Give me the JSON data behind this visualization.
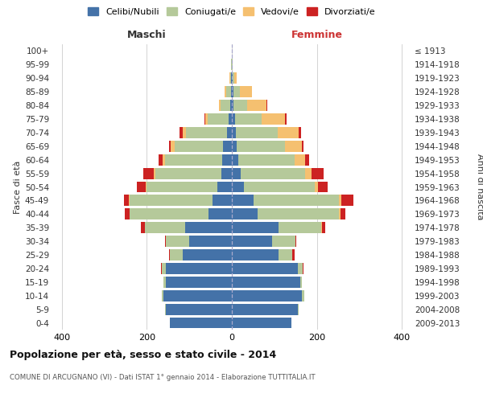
{
  "age_groups": [
    "0-4",
    "5-9",
    "10-14",
    "15-19",
    "20-24",
    "25-29",
    "30-34",
    "35-39",
    "40-44",
    "45-49",
    "50-54",
    "55-59",
    "60-64",
    "65-69",
    "70-74",
    "75-79",
    "80-84",
    "85-89",
    "90-94",
    "95-99",
    "100+"
  ],
  "birth_years": [
    "2009-2013",
    "2004-2008",
    "1999-2003",
    "1994-1998",
    "1989-1993",
    "1984-1988",
    "1979-1983",
    "1974-1978",
    "1969-1973",
    "1964-1968",
    "1959-1963",
    "1954-1958",
    "1949-1953",
    "1944-1948",
    "1939-1943",
    "1934-1938",
    "1929-1933",
    "1924-1928",
    "1919-1923",
    "1914-1918",
    "≤ 1913"
  ],
  "male_celibi": [
    145,
    155,
    160,
    155,
    155,
    115,
    100,
    110,
    55,
    45,
    35,
    25,
    22,
    20,
    12,
    8,
    4,
    2,
    1,
    0,
    0
  ],
  "male_coniugati": [
    0,
    2,
    5,
    5,
    10,
    30,
    55,
    95,
    185,
    195,
    165,
    155,
    135,
    115,
    95,
    48,
    22,
    12,
    3,
    1,
    0
  ],
  "male_vedovi": [
    0,
    0,
    0,
    0,
    0,
    0,
    0,
    0,
    1,
    2,
    2,
    4,
    5,
    8,
    8,
    6,
    5,
    3,
    1,
    0,
    0
  ],
  "male_divorziati": [
    0,
    0,
    0,
    0,
    1,
    2,
    2,
    8,
    10,
    12,
    22,
    25,
    10,
    5,
    8,
    2,
    0,
    0,
    0,
    0,
    0
  ],
  "female_nubili": [
    140,
    155,
    165,
    160,
    155,
    110,
    95,
    110,
    60,
    52,
    28,
    20,
    15,
    12,
    10,
    8,
    4,
    3,
    1,
    0,
    0
  ],
  "female_coniugate": [
    0,
    2,
    5,
    5,
    12,
    32,
    55,
    100,
    192,
    200,
    167,
    152,
    132,
    112,
    97,
    62,
    32,
    15,
    5,
    1,
    0
  ],
  "female_vedove": [
    0,
    0,
    0,
    0,
    0,
    0,
    0,
    1,
    3,
    5,
    8,
    15,
    25,
    40,
    50,
    55,
    45,
    30,
    5,
    1,
    0
  ],
  "female_divorziate": [
    0,
    0,
    0,
    0,
    1,
    5,
    2,
    8,
    12,
    28,
    22,
    28,
    10,
    5,
    5,
    3,
    2,
    0,
    0,
    0,
    0
  ],
  "colors": {
    "celibi": "#4472a8",
    "coniugati": "#b5c99a",
    "vedovi": "#f5c070",
    "divorziati": "#cc2222"
  },
  "legend_labels": [
    "Celibi/Nubili",
    "Coniugati/e",
    "Vedovi/e",
    "Divorziati/e"
  ],
  "title": "Popolazione per età, sesso e stato civile - 2014",
  "subtitle": "COMUNE DI ARCUGNANO (VI) - Dati ISTAT 1° gennaio 2014 - Elaborazione TUTTITALIA.IT",
  "label_maschi": "Maschi",
  "label_femmine": "Femmine",
  "ylabel_left": "Fasce di età",
  "ylabel_right": "Anni di nascita",
  "xlim": 420,
  "background": "#ffffff",
  "grid_color": "#cccccc"
}
